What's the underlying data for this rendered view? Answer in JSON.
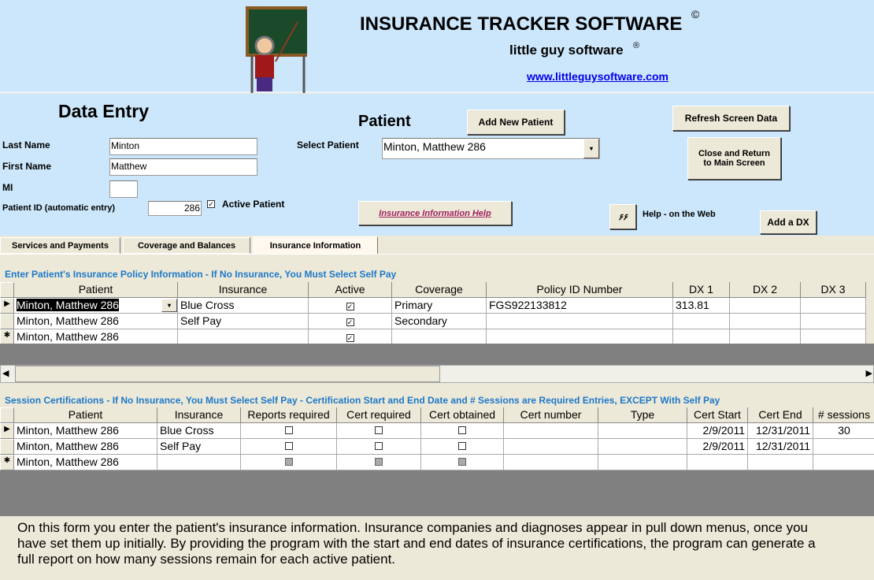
{
  "header": {
    "title": "INSURANCE TRACKER SOFTWARE",
    "copyright": "©",
    "company": "little guy software",
    "registered": "®",
    "website": "www.littleguysoftware.com"
  },
  "form": {
    "heading": "Data Entry",
    "patient_heading": "Patient",
    "last_name_label": "Last Name",
    "last_name": "Minton",
    "first_name_label": "First Name",
    "first_name": "Matthew",
    "mi_label": "MI",
    "mi": "",
    "patient_id_label": "Patient  ID (automatic entry)",
    "patient_id": "286",
    "active_patient_label": "Active Patient",
    "active_patient": true,
    "select_patient_label": "Select Patient",
    "select_patient_value": "Minton, Matthew 286",
    "add_new_patient": "Add New Patient",
    "refresh": "Refresh Screen Data",
    "close_return": "Close and Return to Main Screen",
    "insurance_help": "Insurance Information Help",
    "help_web": "Help - on the Web",
    "add_dx": "Add a DX"
  },
  "tabs": [
    {
      "label": "Services and Payments"
    },
    {
      "label": "Coverage and Balances"
    },
    {
      "label": "Insurance Information",
      "active": true
    }
  ],
  "policy": {
    "title": "Enter Patient's Insurance Policy Information - If No Insurance, You Must Select Self Pay",
    "columns": [
      "Patient",
      "Insurance",
      "Active",
      "Coverage",
      "Policy ID Number",
      "DX 1",
      "DX 2",
      "DX 3"
    ],
    "rows": [
      [
        "Minton, Matthew 286",
        "Blue Cross",
        true,
        "Primary",
        "FGS922133812",
        "313.81",
        "",
        ""
      ],
      [
        "Minton, Matthew 286",
        "Self Pay",
        true,
        "Secondary",
        "",
        "",
        "",
        ""
      ],
      [
        "Minton, Matthew 286",
        "",
        true,
        "",
        "",
        "",
        "",
        ""
      ]
    ]
  },
  "certs": {
    "title": "Session Certifications - If No Insurance, You Must Select Self Pay    -    Certification Start and End Date and # Sessions are Required Entries, EXCEPT With Self Pay",
    "columns": [
      "Patient",
      "Insurance",
      "Reports required",
      "Cert required",
      "Cert obtained",
      "Cert number",
      "Type",
      "Cert Start",
      "Cert End",
      "# sessions"
    ],
    "rows": [
      [
        "Minton, Matthew 286",
        "Blue Cross",
        false,
        false,
        false,
        "",
        "",
        "2/9/2011",
        "12/31/2011",
        "30"
      ],
      [
        "Minton, Matthew 286",
        "Self Pay",
        false,
        false,
        false,
        "",
        "",
        "2/9/2011",
        "12/31/2011",
        ""
      ],
      [
        "Minton, Matthew 286",
        "",
        null,
        null,
        null,
        "",
        "",
        "",
        "",
        ""
      ]
    ]
  },
  "description": "On this form you enter the patient's insurance information. Insurance companies and diagnoses appear in pull down menus, once you have set them up initially.  By providing the program with the start and end dates of insurance certifications, the program can generate a full report on how many sessions remain for each active patient."
}
